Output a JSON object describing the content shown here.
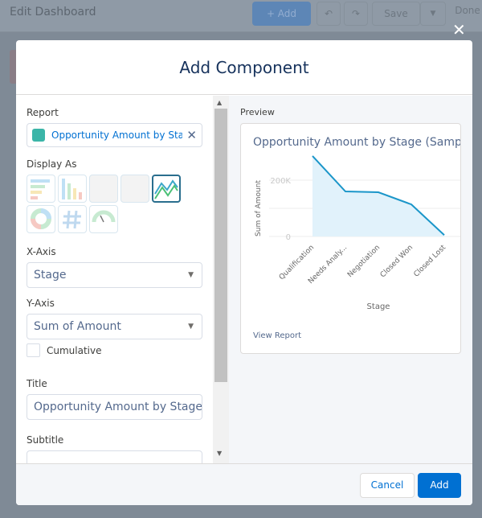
{
  "topbar": {
    "title": "Edit Dashboard",
    "add_label": "+ Add",
    "undo_icon": "undo-icon",
    "redo_icon": "redo-icon",
    "save_label": "Save",
    "done_label": "Done"
  },
  "modal": {
    "title": "Add Component",
    "report": {
      "label": "Report",
      "value": "Opportunity Amount by Stage"
    },
    "display_as": {
      "label": "Display As",
      "options": [
        "horizontal-bar",
        "vertical-bar",
        "table",
        "lightning-table",
        "line",
        "donut",
        "metric",
        "gauge"
      ],
      "selected": "line"
    },
    "x_axis": {
      "label": "X-Axis",
      "value": "Stage"
    },
    "y_axis": {
      "label": "Y-Axis",
      "value": "Sum of Amount"
    },
    "cumulative": {
      "label": "Cumulative",
      "checked": false
    },
    "title_field": {
      "label": "Title",
      "value": "Opportunity Amount by Stage (Sample)"
    },
    "subtitle_field": {
      "label": "Subtitle",
      "value": ""
    },
    "preview": {
      "label": "Preview",
      "title": "Opportunity Amount by Stage (Sample)",
      "view_report": "View Report"
    },
    "cancel_label": "Cancel",
    "add_label": "Add"
  },
  "chart_data": {
    "type": "area",
    "title": "Opportunity Amount by Stage (Sample)",
    "xlabel": "Stage",
    "ylabel": "Sum of Amount",
    "categories": [
      "Qualification",
      "Needs Analy...",
      "Negotiation",
      "Closed Won",
      "Closed Lost"
    ],
    "values": [
      286000,
      160000,
      157000,
      114000,
      5000
    ],
    "yticks": [
      "0",
      "200K"
    ],
    "ylim": [
      0,
      300000
    ],
    "grid": true,
    "color": "#1b96c9",
    "fill": "#e1f2fb"
  }
}
